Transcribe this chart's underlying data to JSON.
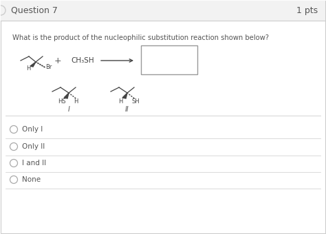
{
  "title": "Question 7",
  "pts": "1 pts",
  "question_text": "What is the product of the nucleophilic substitution reaction shown below?",
  "answer_choices": [
    "Only I",
    "Only II",
    "I and II",
    "None"
  ],
  "bg_color": "#ffffff",
  "header_bg": "#f2f2f2",
  "border_color": "#cccccc",
  "text_color": "#555555",
  "mol_color": "#444444",
  "ch3sh": "CH₃SH",
  "roman_I": "I",
  "roman_II": "II"
}
